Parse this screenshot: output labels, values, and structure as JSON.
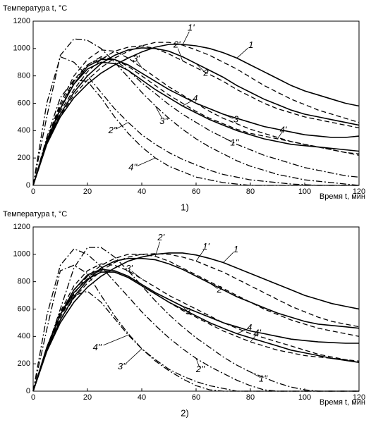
{
  "chart_data": [
    {
      "type": "line",
      "title": "Температура t, °C",
      "xlabel": "Время t, мин",
      "caption": "1)",
      "x": [
        0,
        5,
        10,
        15,
        20,
        25,
        30,
        35,
        40,
        45,
        50,
        55,
        60,
        65,
        70,
        75,
        80,
        85,
        90,
        95,
        100,
        105,
        110,
        115,
        120
      ],
      "xlim": [
        0,
        120
      ],
      "xticks": [
        0,
        20,
        40,
        60,
        80,
        100,
        120
      ],
      "ylim": [
        0,
        1200
      ],
      "yticks": [
        0,
        200,
        400,
        600,
        800,
        1000,
        1200
      ],
      "series": [
        {
          "name": "1",
          "color": "#000",
          "style": "solid",
          "values": [
            0,
            300,
            500,
            640,
            740,
            820,
            880,
            930,
            975,
            1010,
            1030,
            1030,
            1020,
            1000,
            970,
            930,
            880,
            830,
            780,
            730,
            690,
            660,
            630,
            600,
            580
          ]
        },
        {
          "name": "1'",
          "color": "#000",
          "style": "dashed",
          "values": [
            0,
            300,
            510,
            660,
            770,
            860,
            930,
            980,
            1020,
            1045,
            1045,
            1025,
            990,
            950,
            900,
            850,
            790,
            730,
            680,
            630,
            590,
            550,
            520,
            490,
            460
          ]
        },
        {
          "name": "1''",
          "color": "#000",
          "style": "dashdot",
          "values": [
            0,
            300,
            560,
            760,
            880,
            940,
            920,
            840,
            750,
            670,
            590,
            520,
            460,
            400,
            350,
            300,
            260,
            220,
            190,
            160,
            130,
            110,
            90,
            70,
            60
          ]
        },
        {
          "name": "2",
          "color": "#000",
          "style": "solid",
          "values": [
            0,
            310,
            520,
            680,
            800,
            890,
            950,
            990,
            1005,
            1000,
            980,
            940,
            890,
            840,
            790,
            730,
            680,
            630,
            590,
            550,
            520,
            500,
            480,
            460,
            440
          ]
        },
        {
          "name": "2'",
          "color": "#000",
          "style": "dashed",
          "values": [
            0,
            320,
            540,
            700,
            830,
            920,
            980,
            1010,
            1020,
            1000,
            960,
            910,
            860,
            810,
            760,
            700,
            650,
            600,
            560,
            530,
            500,
            480,
            460,
            440,
            420
          ]
        },
        {
          "name": "2''",
          "color": "#000",
          "style": "dashdot",
          "values": [
            0,
            600,
            940,
            900,
            800,
            680,
            560,
            460,
            370,
            300,
            240,
            190,
            150,
            110,
            80,
            60,
            40,
            30,
            20,
            10,
            5,
            0,
            0,
            0,
            0
          ]
        },
        {
          "name": "3",
          "color": "#000",
          "style": "solid",
          "values": [
            0,
            330,
            560,
            740,
            870,
            920,
            920,
            880,
            820,
            760,
            700,
            650,
            600,
            560,
            520,
            490,
            460,
            430,
            410,
            390,
            370,
            360,
            350,
            350,
            360
          ]
        },
        {
          "name": "3'",
          "color": "#000",
          "style": "dashed",
          "values": [
            0,
            330,
            600,
            800,
            920,
            990,
            980,
            930,
            860,
            790,
            720,
            660,
            600,
            540,
            490,
            450,
            410,
            380,
            350,
            320,
            300,
            280,
            260,
            240,
            230
          ]
        },
        {
          "name": "3''",
          "color": "#000",
          "style": "dashdot",
          "values": [
            0,
            500,
            950,
            1070,
            1060,
            1000,
            900,
            790,
            680,
            580,
            490,
            410,
            340,
            280,
            230,
            180,
            140,
            110,
            80,
            60,
            40,
            30,
            20,
            10,
            0
          ]
        },
        {
          "name": "4",
          "color": "#000",
          "style": "solid",
          "values": [
            0,
            320,
            560,
            740,
            850,
            900,
            890,
            840,
            770,
            700,
            640,
            580,
            530,
            480,
            440,
            400,
            370,
            340,
            320,
            300,
            290,
            280,
            270,
            260,
            250
          ]
        },
        {
          "name": "4'",
          "color": "#000",
          "style": "dashed",
          "values": [
            0,
            330,
            580,
            770,
            880,
            930,
            920,
            870,
            800,
            730,
            660,
            600,
            540,
            490,
            450,
            410,
            380,
            360,
            340,
            320,
            300,
            280,
            260,
            240,
            220
          ]
        },
        {
          "name": "4''",
          "color": "#000",
          "style": "dashdot",
          "values": [
            0,
            350,
            640,
            770,
            760,
            640,
            500,
            380,
            280,
            200,
            140,
            100,
            60,
            40,
            20,
            10,
            0,
            0,
            0,
            0,
            0,
            0,
            0,
            0,
            0
          ]
        }
      ]
    },
    {
      "type": "line",
      "title": "Температура t, °C",
      "xlabel": "Время t, мин",
      "caption": "2)",
      "x": [
        0,
        5,
        10,
        15,
        20,
        25,
        30,
        35,
        40,
        45,
        50,
        55,
        60,
        65,
        70,
        75,
        80,
        85,
        90,
        95,
        100,
        105,
        110,
        115,
        120
      ],
      "xlim": [
        0,
        120
      ],
      "xticks": [
        0,
        20,
        40,
        60,
        80,
        100,
        120
      ],
      "ylim": [
        0,
        1200
      ],
      "yticks": [
        0,
        200,
        400,
        600,
        800,
        1000,
        1200
      ],
      "series": [
        {
          "name": "1",
          "color": "#000",
          "style": "solid",
          "values": [
            0,
            290,
            500,
            650,
            760,
            840,
            900,
            950,
            980,
            1000,
            1010,
            1010,
            995,
            970,
            940,
            900,
            860,
            820,
            780,
            740,
            700,
            670,
            640,
            620,
            600
          ]
        },
        {
          "name": "1'",
          "color": "#000",
          "style": "dashed",
          "values": [
            0,
            300,
            520,
            680,
            790,
            880,
            940,
            980,
            1000,
            1005,
            1000,
            980,
            950,
            910,
            870,
            820,
            770,
            720,
            670,
            620,
            580,
            540,
            510,
            490,
            470
          ]
        },
        {
          "name": "1''",
          "color": "#000",
          "style": "dashdot",
          "values": [
            0,
            300,
            600,
            900,
            1050,
            1050,
            980,
            880,
            770,
            660,
            560,
            470,
            390,
            320,
            250,
            190,
            140,
            100,
            60,
            30,
            10,
            0,
            0,
            0,
            0
          ]
        },
        {
          "name": "2",
          "color": "#000",
          "style": "solid",
          "values": [
            0,
            300,
            520,
            690,
            810,
            900,
            950,
            970,
            970,
            960,
            930,
            890,
            840,
            790,
            740,
            690,
            650,
            610,
            570,
            540,
            510,
            490,
            480,
            470,
            460
          ]
        },
        {
          "name": "2'",
          "color": "#000",
          "style": "dashed",
          "values": [
            0,
            310,
            540,
            710,
            840,
            920,
            970,
            1000,
            1000,
            985,
            950,
            900,
            850,
            800,
            750,
            700,
            650,
            600,
            560,
            520,
            490,
            460,
            440,
            420,
            400
          ]
        },
        {
          "name": "2''",
          "color": "#000",
          "style": "dashdot",
          "values": [
            0,
            550,
            920,
            1040,
            1000,
            910,
            800,
            690,
            580,
            480,
            390,
            310,
            240,
            180,
            130,
            80,
            40,
            10,
            0,
            0,
            0,
            0,
            0,
            0,
            0
          ]
        },
        {
          "name": "3",
          "color": "#000",
          "style": "solid",
          "values": [
            0,
            310,
            560,
            740,
            850,
            890,
            880,
            840,
            780,
            720,
            670,
            620,
            580,
            540,
            500,
            470,
            440,
            420,
            400,
            380,
            370,
            360,
            355,
            350,
            350
          ]
        },
        {
          "name": "3'",
          "color": "#000",
          "style": "dashed",
          "values": [
            0,
            320,
            580,
            770,
            880,
            930,
            920,
            880,
            820,
            760,
            700,
            650,
            600,
            550,
            500,
            460,
            420,
            390,
            360,
            330,
            300,
            270,
            250,
            230,
            210
          ]
        },
        {
          "name": "3''",
          "color": "#000",
          "style": "dashdot",
          "values": [
            0,
            450,
            880,
            920,
            860,
            700,
            550,
            420,
            310,
            220,
            150,
            90,
            40,
            10,
            0,
            0,
            0,
            0,
            0,
            0,
            0,
            0,
            0,
            0,
            0
          ]
        },
        {
          "name": "4",
          "color": "#000",
          "style": "solid",
          "values": [
            0,
            320,
            560,
            720,
            820,
            870,
            870,
            830,
            770,
            710,
            650,
            600,
            550,
            500,
            460,
            420,
            390,
            360,
            330,
            300,
            280,
            260,
            240,
            225,
            210
          ]
        },
        {
          "name": "4'",
          "color": "#000",
          "style": "dashed",
          "values": [
            0,
            320,
            570,
            740,
            840,
            880,
            870,
            830,
            770,
            710,
            650,
            590,
            540,
            490,
            440,
            400,
            360,
            330,
            300,
            280,
            260,
            250,
            240,
            230,
            220
          ]
        },
        {
          "name": "4''",
          "color": "#000",
          "style": "dashdot",
          "values": [
            0,
            320,
            560,
            700,
            730,
            650,
            530,
            410,
            310,
            230,
            160,
            110,
            70,
            40,
            20,
            0,
            0,
            0,
            0,
            0,
            0,
            0,
            0,
            0,
            0
          ]
        }
      ]
    }
  ]
}
